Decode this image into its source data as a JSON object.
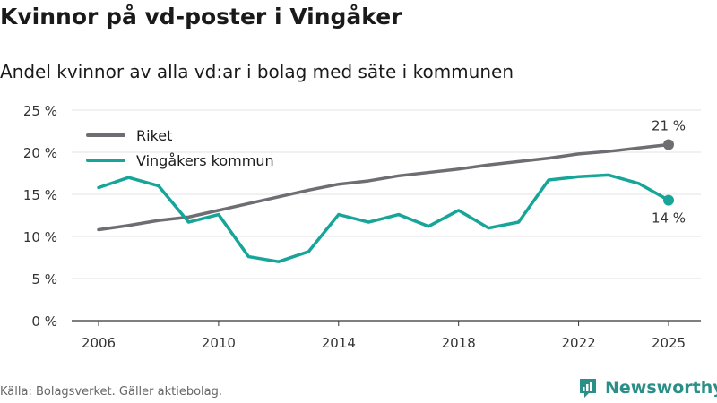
{
  "header": {
    "title": "Kvinnor på vd-poster i Vingåker",
    "subtitle": "Andel kvinnor av alla vd:ar i bolag med säte i kommunen"
  },
  "footer": {
    "source": "Källa: Bolagsverket. Gäller aktiebolag.",
    "brand": "Newsworthy"
  },
  "colors": {
    "riket": "#6e6d72",
    "vingaker": "#16a598",
    "brand": "#2a8f87"
  },
  "chart_data": {
    "type": "line",
    "title": "Kvinnor på vd-poster i Vingåker",
    "subtitle": "Andel kvinnor av alla vd:ar i bolag med säte i kommunen",
    "xlabel": "",
    "ylabel": "",
    "ylim": [
      0,
      25
    ],
    "xlim": [
      2006,
      2025
    ],
    "x_ticks": [
      "2006",
      "2010",
      "2014",
      "2018",
      "2022",
      "2025"
    ],
    "y_ticks": [
      "0 %",
      "5 %",
      "10 %",
      "15 %",
      "20 %",
      "25 %"
    ],
    "y_tick_values": [
      0,
      5,
      10,
      15,
      20,
      25
    ],
    "grid": true,
    "legend_position": "top-left",
    "x": [
      2006,
      2007,
      2008,
      2009,
      2010,
      2011,
      2012,
      2013,
      2014,
      2015,
      2016,
      2017,
      2018,
      2019,
      2020,
      2021,
      2022,
      2023,
      2024,
      2025
    ],
    "series": [
      {
        "name": "Riket",
        "color": "#6e6d72",
        "values": [
          10.8,
          11.3,
          11.9,
          12.3,
          13.1,
          13.9,
          14.7,
          15.5,
          16.2,
          16.6,
          17.2,
          17.6,
          18.0,
          18.5,
          18.9,
          19.3,
          19.8,
          20.1,
          20.5,
          20.9
        ],
        "end_label": "21 %"
      },
      {
        "name": "Vingåkers kommun",
        "color": "#16a598",
        "values": [
          15.8,
          17.0,
          16.0,
          11.7,
          12.6,
          7.6,
          7.0,
          8.2,
          12.6,
          11.7,
          12.6,
          11.2,
          13.1,
          11.0,
          11.7,
          16.7,
          17.1,
          17.3,
          16.3,
          14.3
        ],
        "end_label": "14 %"
      }
    ]
  }
}
